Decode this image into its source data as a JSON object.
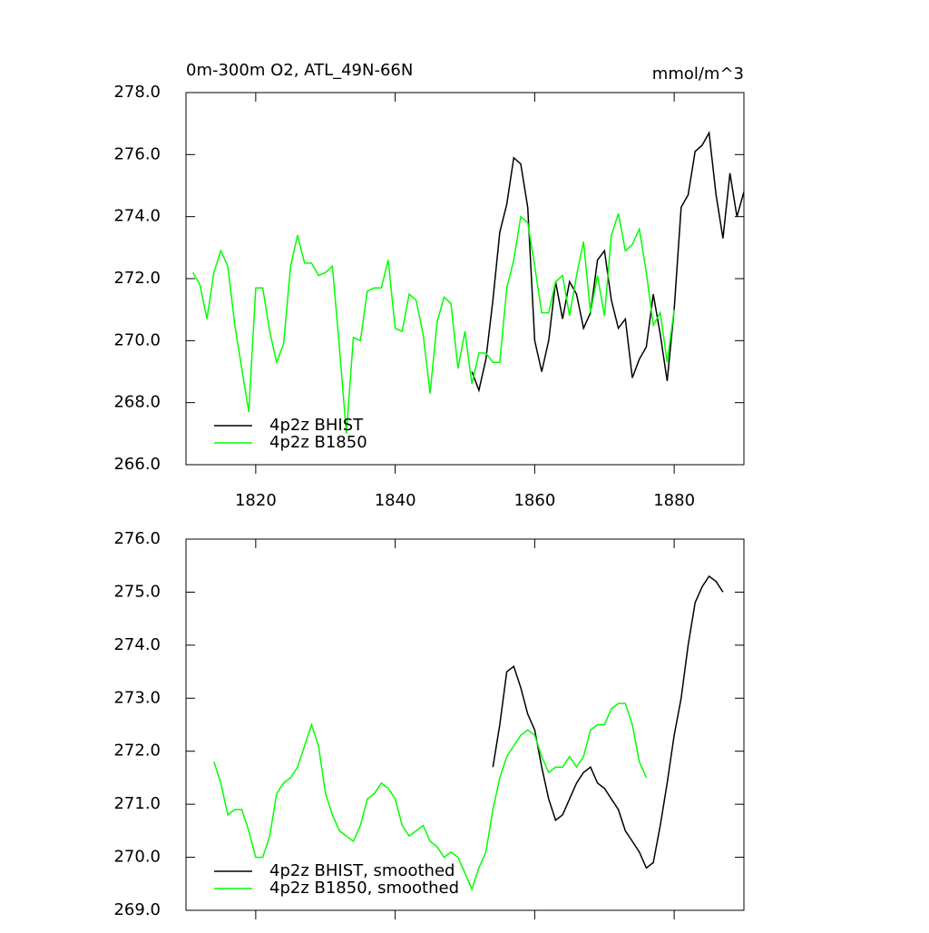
{
  "chart_data": [
    {
      "type": "line",
      "title": "0m-300m O2, ATL_49N-66N",
      "units": "mmol/m^3",
      "x": [
        1811,
        1812,
        1813,
        1814,
        1815,
        1816,
        1817,
        1818,
        1819,
        1820,
        1821,
        1822,
        1823,
        1824,
        1825,
        1826,
        1827,
        1828,
        1829,
        1830,
        1831,
        1832,
        1833,
        1834,
        1835,
        1836,
        1837,
        1838,
        1839,
        1840,
        1841,
        1842,
        1843,
        1844,
        1845,
        1846,
        1847,
        1848,
        1849,
        1850,
        1851,
        1852,
        1853,
        1854,
        1855,
        1856,
        1857,
        1858,
        1859,
        1860,
        1861,
        1862,
        1863,
        1864,
        1865,
        1866,
        1867,
        1868,
        1869,
        1870,
        1871,
        1872,
        1873,
        1874,
        1875,
        1876,
        1877,
        1878,
        1879,
        1880,
        1881,
        1882,
        1883,
        1884,
        1885,
        1886,
        1887,
        1888,
        1889,
        1890
      ],
      "series": [
        {
          "name": "4p2z BHIST",
          "color": "#000000",
          "values": [
            null,
            null,
            null,
            null,
            null,
            null,
            null,
            null,
            null,
            null,
            null,
            null,
            null,
            null,
            null,
            null,
            null,
            null,
            null,
            null,
            null,
            null,
            null,
            null,
            null,
            null,
            null,
            null,
            null,
            null,
            null,
            null,
            null,
            null,
            null,
            null,
            null,
            null,
            null,
            null,
            269.0,
            268.4,
            269.4,
            271.3,
            273.5,
            274.4,
            275.9,
            275.7,
            274.3,
            270.0,
            269.0,
            270.0,
            271.9,
            270.7,
            271.9,
            271.5,
            270.4,
            270.9,
            272.6,
            272.9,
            271.3,
            270.4,
            270.7,
            268.8,
            269.4,
            269.8,
            271.5,
            270.2,
            268.7,
            271.0,
            274.3,
            274.7,
            276.1,
            276.3,
            276.7,
            274.7,
            273.3,
            275.4,
            274.0,
            274.8
          ]
        },
        {
          "name": "4p2z B1850",
          "color": "#00ff00",
          "values": [
            272.2,
            271.8,
            270.7,
            272.2,
            272.9,
            272.4,
            270.5,
            269.1,
            267.7,
            271.7,
            271.7,
            270.3,
            269.3,
            269.9,
            272.4,
            273.4,
            272.5,
            272.5,
            272.1,
            272.2,
            272.4,
            269.8,
            267.0,
            270.1,
            270.0,
            271.6,
            271.7,
            271.7,
            272.6,
            270.4,
            270.3,
            271.5,
            271.3,
            270.2,
            268.3,
            270.6,
            271.4,
            271.2,
            269.1,
            270.3,
            268.6,
            269.6,
            269.6,
            269.3,
            269.3,
            271.7,
            272.6,
            274.0,
            273.8,
            272.4,
            270.9,
            270.9,
            271.9,
            272.1,
            270.8,
            272.1,
            273.2,
            270.9,
            272.1,
            270.8,
            273.4,
            274.1,
            272.9,
            273.1,
            273.6,
            272.2,
            270.5,
            270.9,
            269.3,
            271.0,
            null,
            null,
            null,
            null,
            null,
            null,
            null,
            null,
            null,
            null
          ]
        }
      ],
      "xlim": [
        1810,
        1890
      ],
      "xticks": [
        1820,
        1840,
        1860,
        1880
      ],
      "xtick_labels": true,
      "ylim": [
        266,
        278
      ],
      "yticks": [
        {
          "value": 266,
          "label": "266.0"
        },
        {
          "value": 268,
          "label": "268.0"
        },
        {
          "value": 270,
          "label": "270.0"
        },
        {
          "value": 272,
          "label": "272.0"
        },
        {
          "value": 274,
          "label": "274.0"
        },
        {
          "value": 276,
          "label": "276.0"
        },
        {
          "value": 278,
          "label": "278.0"
        }
      ],
      "legend": "bottom-left"
    },
    {
      "type": "line",
      "x": [
        1811,
        1812,
        1813,
        1814,
        1815,
        1816,
        1817,
        1818,
        1819,
        1820,
        1821,
        1822,
        1823,
        1824,
        1825,
        1826,
        1827,
        1828,
        1829,
        1830,
        1831,
        1832,
        1833,
        1834,
        1835,
        1836,
        1837,
        1838,
        1839,
        1840,
        1841,
        1842,
        1843,
        1844,
        1845,
        1846,
        1847,
        1848,
        1849,
        1850,
        1851,
        1852,
        1853,
        1854,
        1855,
        1856,
        1857,
        1858,
        1859,
        1860,
        1861,
        1862,
        1863,
        1864,
        1865,
        1866,
        1867,
        1868,
        1869,
        1870,
        1871,
        1872,
        1873,
        1874,
        1875,
        1876,
        1877,
        1878,
        1879,
        1880,
        1881,
        1882,
        1883,
        1884,
        1885,
        1886,
        1887,
        1888,
        1889,
        1890
      ],
      "series": [
        {
          "name": "4p2z BHIST, smoothed",
          "color": "#000000",
          "values": [
            null,
            null,
            null,
            null,
            null,
            null,
            null,
            null,
            null,
            null,
            null,
            null,
            null,
            null,
            null,
            null,
            null,
            null,
            null,
            null,
            null,
            null,
            null,
            null,
            null,
            null,
            null,
            null,
            null,
            null,
            null,
            null,
            null,
            null,
            null,
            null,
            null,
            null,
            null,
            null,
            null,
            null,
            null,
            271.7,
            272.5,
            273.5,
            273.6,
            273.2,
            272.7,
            272.4,
            271.7,
            271.1,
            270.7,
            270.8,
            271.1,
            271.4,
            271.6,
            271.7,
            271.4,
            271.3,
            271.1,
            270.9,
            270.5,
            270.3,
            270.1,
            269.8,
            269.9,
            270.6,
            271.4,
            272.3,
            273.0,
            274.0,
            274.8,
            275.1,
            275.3,
            275.2,
            275.0,
            null,
            null,
            null
          ]
        },
        {
          "name": "4p2z B1850, smoothed",
          "color": "#00ff00",
          "values": [
            null,
            null,
            null,
            271.8,
            271.4,
            270.8,
            270.9,
            270.9,
            270.5,
            270.0,
            270.0,
            270.4,
            271.2,
            271.4,
            271.5,
            271.7,
            272.1,
            272.5,
            272.1,
            271.2,
            270.8,
            270.5,
            270.4,
            270.3,
            270.6,
            271.1,
            271.2,
            271.4,
            271.3,
            271.1,
            270.6,
            270.4,
            270.5,
            270.6,
            270.3,
            270.2,
            270.0,
            270.1,
            270.0,
            269.7,
            269.4,
            269.8,
            270.1,
            270.9,
            271.5,
            271.9,
            272.1,
            272.3,
            272.4,
            272.3,
            271.9,
            271.6,
            271.7,
            271.7,
            271.9,
            271.7,
            271.9,
            272.4,
            272.5,
            272.5,
            272.8,
            272.9,
            272.9,
            272.5,
            271.8,
            271.5,
            null,
            null,
            null,
            null,
            null,
            null,
            null,
            null,
            null,
            null,
            null,
            null,
            null,
            null
          ]
        }
      ],
      "xlim": [
        1810,
        1890
      ],
      "xticks": [
        1820,
        1840,
        1860,
        1880
      ],
      "xtick_labels": false,
      "ylim": [
        269,
        276
      ],
      "yticks": [
        {
          "value": 269,
          "label": "269.0"
        },
        {
          "value": 270,
          "label": "270.0"
        },
        {
          "value": 271,
          "label": "271.0"
        },
        {
          "value": 272,
          "label": "272.0"
        },
        {
          "value": 273,
          "label": "273.0"
        },
        {
          "value": 274,
          "label": "274.0"
        },
        {
          "value": 275,
          "label": "275.0"
        },
        {
          "value": 276,
          "label": "276.0"
        }
      ],
      "legend": "bottom-left"
    }
  ]
}
